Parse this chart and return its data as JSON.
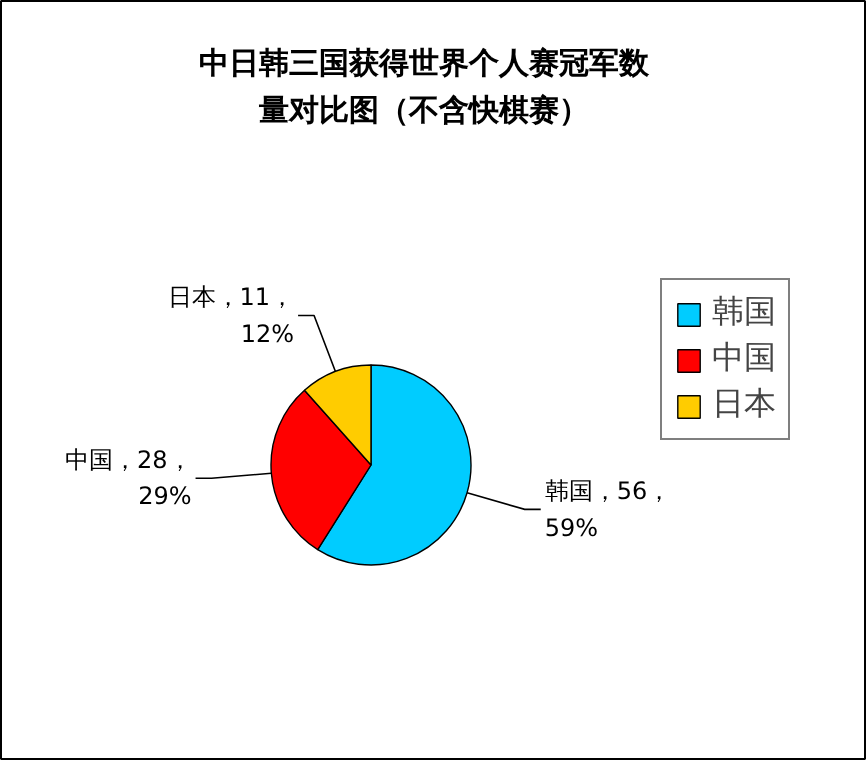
{
  "chart_data": {
    "type": "pie",
    "title": "中日韩三国获得世界个人赛冠军数量对比图（不含快棋赛）",
    "categories": [
      "韩国",
      "中国",
      "日本"
    ],
    "values": [
      56,
      28,
      11
    ],
    "colors": [
      "#00ccff",
      "#ff0000",
      "#ffcc00"
    ],
    "value_labels": [
      "韩国，56，59%",
      "中国，28，29%",
      "日本，11，12%"
    ],
    "legend": "right"
  }
}
